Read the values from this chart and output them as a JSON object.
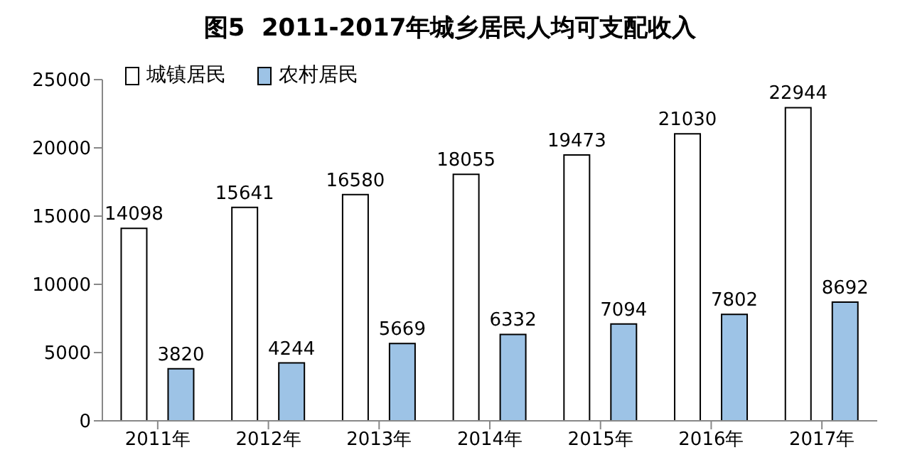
{
  "chart_data": {
    "type": "bar",
    "title": "图5  2011-2017年城乡居民人均可支配收入",
    "categories": [
      "2011年",
      "2012年",
      "2013年",
      "2014年",
      "2015年",
      "2016年",
      "2017年"
    ],
    "series": [
      {
        "name": "城镇居民",
        "color": "#ffffff",
        "values": [
          14098,
          15641,
          16580,
          18055,
          19473,
          21030,
          22944
        ]
      },
      {
        "name": "农村居民",
        "color": "#9dc3e6",
        "values": [
          3820,
          4244,
          5669,
          6332,
          7094,
          7802,
          8692
        ]
      }
    ],
    "ylim": [
      0,
      25000
    ],
    "yticks": [
      0,
      5000,
      10000,
      15000,
      20000,
      25000
    ],
    "grid": false,
    "legend": "top left",
    "data_labels": true
  }
}
